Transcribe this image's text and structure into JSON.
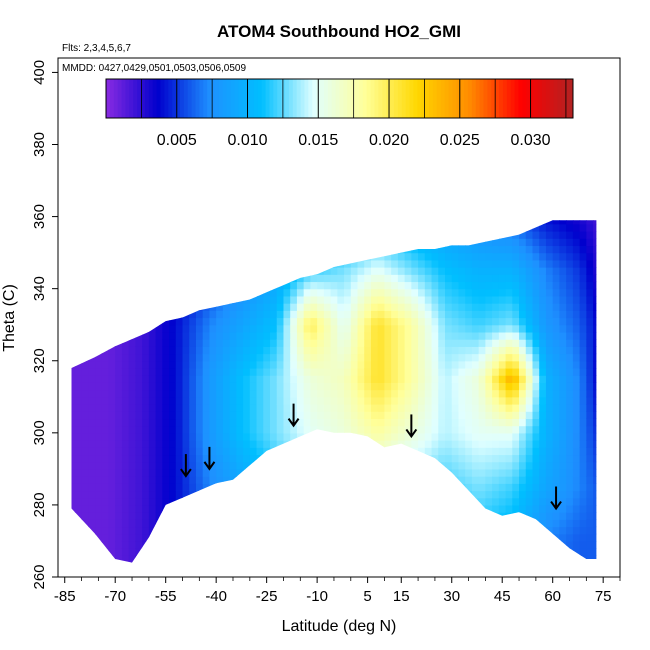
{
  "chart_data": {
    "type": "heatmap",
    "title": "ATOM4 Southbound HO2_GMI",
    "flights_note": "Flts: 2,3,4,5,6,7",
    "dates_note": "MMDD: 0427,0429,0501,0503,0506,0509",
    "xlabel": "Latitude (deg N)",
    "ylabel": "Theta (C)",
    "xlim": [
      -87,
      80
    ],
    "ylim": [
      260,
      404
    ],
    "x_ticks": [
      -85,
      -70,
      -55,
      -40,
      -25,
      -10,
      5,
      15,
      30,
      45,
      60,
      75
    ],
    "x_minor_ticks": [
      -80,
      -75,
      -65,
      -60,
      -50,
      -45,
      -35,
      -30,
      -20,
      -15,
      -5,
      0,
      10,
      20,
      25,
      35,
      40,
      50,
      55,
      65,
      70,
      80
    ],
    "y_ticks": [
      260,
      280,
      300,
      320,
      340,
      360,
      380,
      400
    ],
    "colorbar": {
      "min": 0.0,
      "max": 0.033,
      "ticks": [
        0.005,
        0.01,
        0.015,
        0.02,
        0.025,
        0.03
      ],
      "tick_labels": [
        "0.005",
        "0.010",
        "0.015",
        "0.020",
        "0.025",
        "0.030"
      ],
      "colors": [
        "#8a2be2",
        "#0000cd",
        "#1e90ff",
        "#00bfff",
        "#e0ffff",
        "#ffff99",
        "#ffd700",
        "#ff8c00",
        "#ff0000",
        "#b22222"
      ]
    },
    "field_lat": [
      -83,
      -72,
      -62,
      -52,
      -42,
      -32,
      -22,
      -12,
      -2,
      8,
      18,
      28,
      38,
      48,
      58,
      68,
      73
    ],
    "field_theta": [
      270,
      285,
      300,
      315,
      330,
      345,
      360
    ],
    "field_values": [
      [
        0.001,
        0.001,
        0.002,
        0.004,
        0.006,
        0.008,
        0.009,
        0.01,
        0.011,
        0.011,
        0.01,
        0.01,
        0.011,
        0.01,
        0.007,
        0.006,
        0.006
      ],
      [
        0.001,
        0.001,
        0.002,
        0.004,
        0.007,
        0.009,
        0.011,
        0.012,
        0.013,
        0.014,
        0.013,
        0.012,
        0.013,
        0.012,
        0.009,
        0.007,
        0.006
      ],
      [
        0.001,
        0.001,
        0.002,
        0.004,
        0.008,
        0.011,
        0.013,
        0.015,
        0.016,
        0.018,
        0.016,
        0.014,
        0.015,
        0.015,
        0.01,
        0.007,
        0.005
      ],
      [
        0.001,
        0.001,
        0.002,
        0.004,
        0.008,
        0.011,
        0.013,
        0.016,
        0.017,
        0.021,
        0.018,
        0.014,
        0.016,
        0.024,
        0.01,
        0.007,
        0.004
      ],
      [
        0.001,
        0.001,
        0.002,
        0.004,
        0.007,
        0.009,
        0.011,
        0.02,
        0.015,
        0.021,
        0.018,
        0.013,
        0.012,
        0.013,
        0.008,
        0.006,
        0.004
      ],
      [
        0.001,
        0.001,
        0.002,
        0.003,
        0.005,
        0.007,
        0.009,
        0.012,
        0.013,
        0.015,
        0.013,
        0.011,
        0.01,
        0.01,
        0.007,
        0.005,
        0.003
      ],
      [
        0.001,
        0.001,
        0.002,
        0.003,
        0.004,
        0.005,
        0.006,
        0.008,
        0.009,
        0.01,
        0.009,
        0.008,
        0.007,
        0.006,
        0.004,
        0.003,
        0.002
      ]
    ],
    "coverage": {
      "lat": [
        -83,
        -76,
        -70,
        -65,
        -60,
        -55,
        -50,
        -45,
        -40,
        -35,
        -30,
        -25,
        -20,
        -15,
        -10,
        -5,
        0,
        5,
        10,
        15,
        20,
        25,
        30,
        35,
        40,
        45,
        50,
        55,
        60,
        65,
        70,
        73
      ],
      "theta_min": [
        279,
        272,
        265,
        264,
        271,
        280,
        282,
        284,
        286,
        287,
        291,
        295,
        297,
        299,
        301,
        300,
        300,
        299,
        296,
        297,
        295,
        293,
        289,
        284,
        279,
        277,
        278,
        276,
        272,
        268,
        265,
        265
      ],
      "theta_max": [
        318,
        321,
        324,
        326,
        328,
        331,
        332,
        334,
        335,
        336,
        337,
        339,
        341,
        343,
        344,
        346,
        347,
        348,
        349,
        350,
        351,
        351,
        352,
        352,
        353,
        354,
        355,
        357,
        359,
        359,
        359,
        359
      ]
    },
    "arrows": [
      {
        "lat": -49,
        "theta": 288
      },
      {
        "lat": -42,
        "theta": 290
      },
      {
        "lat": -17,
        "theta": 302
      },
      {
        "lat": 18,
        "theta": 299
      },
      {
        "lat": 61,
        "theta": 279
      }
    ]
  }
}
